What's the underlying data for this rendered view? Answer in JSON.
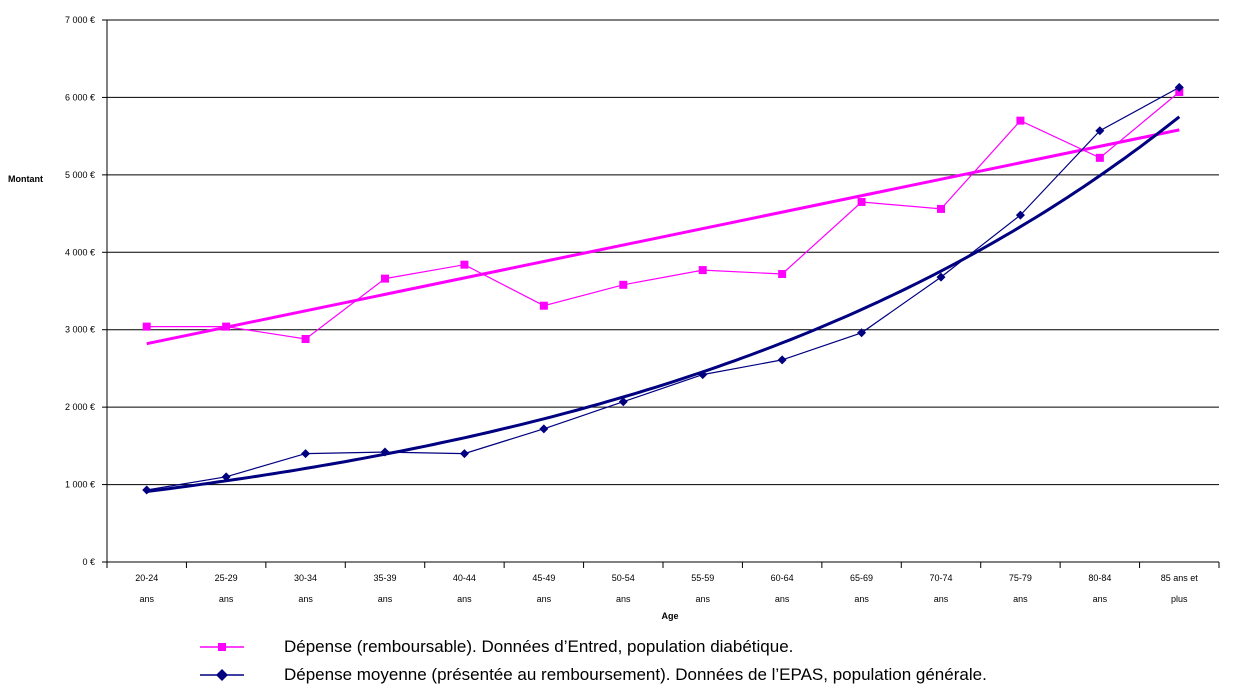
{
  "chart_data": {
    "type": "line",
    "ylabel": "Montant",
    "xlabel": "Age",
    "ylim": [
      0,
      7000
    ],
    "yticks": [
      0,
      1000,
      2000,
      3000,
      4000,
      5000,
      6000,
      7000
    ],
    "ytick_labels": [
      "0 €",
      "1 000 €",
      "2 000 €",
      "3 000 €",
      "4 000 €",
      "5 000 €",
      "6 000 €",
      "7 000 €"
    ],
    "grid": true,
    "legend_position": "bottom",
    "categories": [
      [
        "20-24",
        "ans"
      ],
      [
        "25-29",
        "ans"
      ],
      [
        "30-34",
        "ans"
      ],
      [
        "35-39",
        "ans"
      ],
      [
        "40-44",
        "ans"
      ],
      [
        "45-49",
        "ans"
      ],
      [
        "50-54",
        "ans"
      ],
      [
        "55-59",
        "ans"
      ],
      [
        "60-64",
        "ans"
      ],
      [
        "65-69",
        "ans"
      ],
      [
        "70-74",
        "ans"
      ],
      [
        "75-79",
        "ans"
      ],
      [
        "80-84",
        "ans"
      ],
      [
        "85 ans et",
        "plus"
      ]
    ],
    "series": [
      {
        "name": "Dépense (remboursable). Données d’Entred, population diabétique.",
        "color": "#ff00ff",
        "marker": "square",
        "values": [
          3040,
          3040,
          2880,
          3660,
          3840,
          3310,
          3580,
          3770,
          3720,
          4650,
          4560,
          5700,
          5220,
          6070
        ],
        "trend": {
          "type": "linear",
          "start": 2820,
          "end": 5580,
          "color": "#ff00ff"
        }
      },
      {
        "name": "Dépense moyenne (présentée au remboursement). Données de l’EPAS, population générale.",
        "color": "#000080",
        "marker": "diamond",
        "values": [
          930,
          1100,
          1400,
          1420,
          1400,
          1720,
          2070,
          2420,
          2610,
          2960,
          3680,
          4480,
          5570,
          6130
        ],
        "trend": {
          "type": "exponential",
          "start": 910,
          "end": 5750,
          "color": "#000080"
        }
      }
    ]
  }
}
